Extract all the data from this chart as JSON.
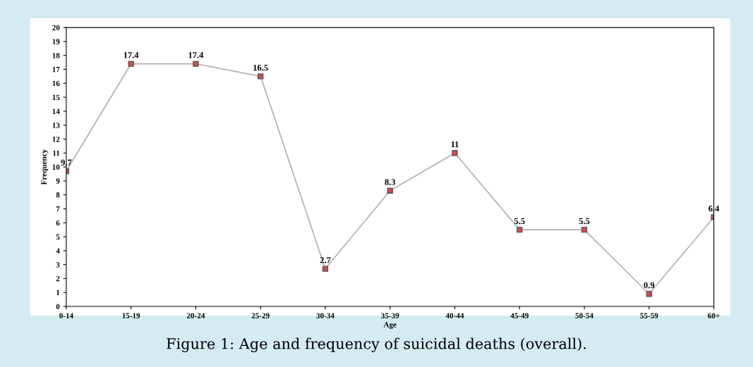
{
  "chart_data": {
    "type": "line",
    "title": "Figure 1: Age and frequency of suicidal deaths (overall).",
    "xlabel": "Age",
    "ylabel": "Frequency",
    "categories": [
      "0-14",
      "15-19",
      "20-24",
      "25-29",
      "30-34",
      "35-39",
      "40-44",
      "45-49",
      "50-54",
      "55-59",
      "60+"
    ],
    "series": [
      {
        "color": "#b0b0b0",
        "values": [
          9.7,
          17.4,
          17.4,
          16.5,
          2.7,
          8.3,
          11,
          5.5,
          5.5,
          0.9,
          6.4
        ]
      }
    ],
    "ylim": [
      0,
      20
    ],
    "yticks": [
      0,
      1,
      2,
      3,
      4,
      5,
      6,
      7,
      8,
      9,
      10,
      11,
      12,
      13,
      14,
      15,
      16,
      17,
      18,
      19,
      20
    ],
    "marker": "square",
    "data_labels": true,
    "grid": false,
    "legend": false
  }
}
